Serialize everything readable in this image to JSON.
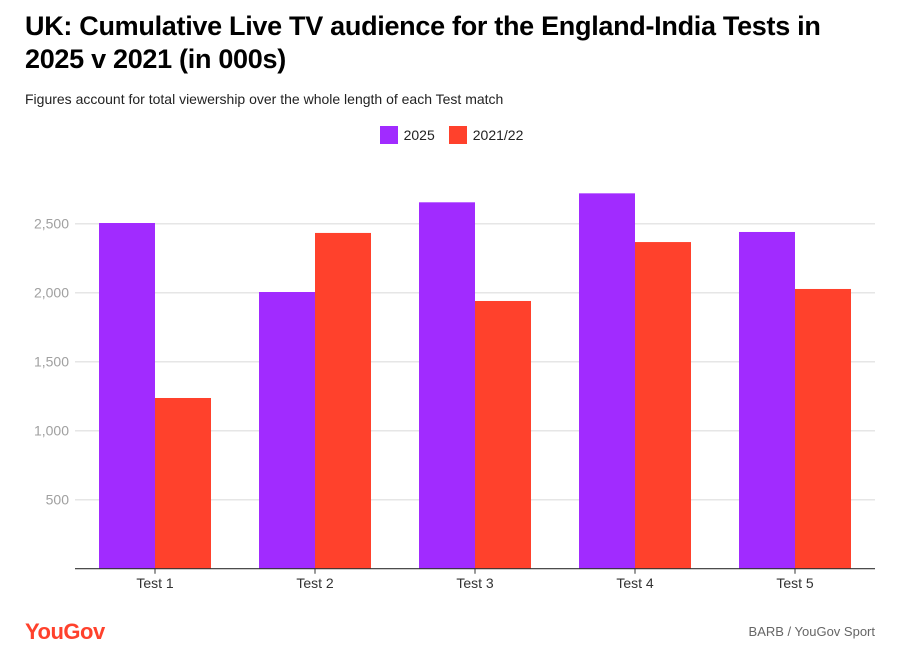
{
  "title": "UK: Cumulative Live TV audience for the England-India Tests in 2025 v 2021 (in 000s)",
  "subtitle": "Figures account for total viewership over the whole length of each Test match",
  "source": "BARB / YouGov Sport",
  "logo": "YouGov",
  "chart_data": {
    "type": "bar",
    "categories": [
      "Test 1",
      "Test 2",
      "Test 3",
      "Test 4",
      "Test 5"
    ],
    "series": [
      {
        "name": "2025",
        "color": "#a12bff",
        "values": [
          2505,
          2005,
          2655,
          2720,
          2440
        ]
      },
      {
        "name": "2021/22",
        "color": "#ff412c",
        "values": [
          1237,
          2433,
          1940,
          2367,
          2027
        ]
      }
    ],
    "yticks": [
      500,
      1000,
      1500,
      2000,
      2500
    ],
    "ytick_labels": [
      "500",
      "1,000",
      "1,500",
      "2,000",
      "2,500"
    ],
    "ylim": [
      0,
      2850
    ],
    "grid": true,
    "legend": "top-center",
    "xlabel": "",
    "ylabel": ""
  }
}
